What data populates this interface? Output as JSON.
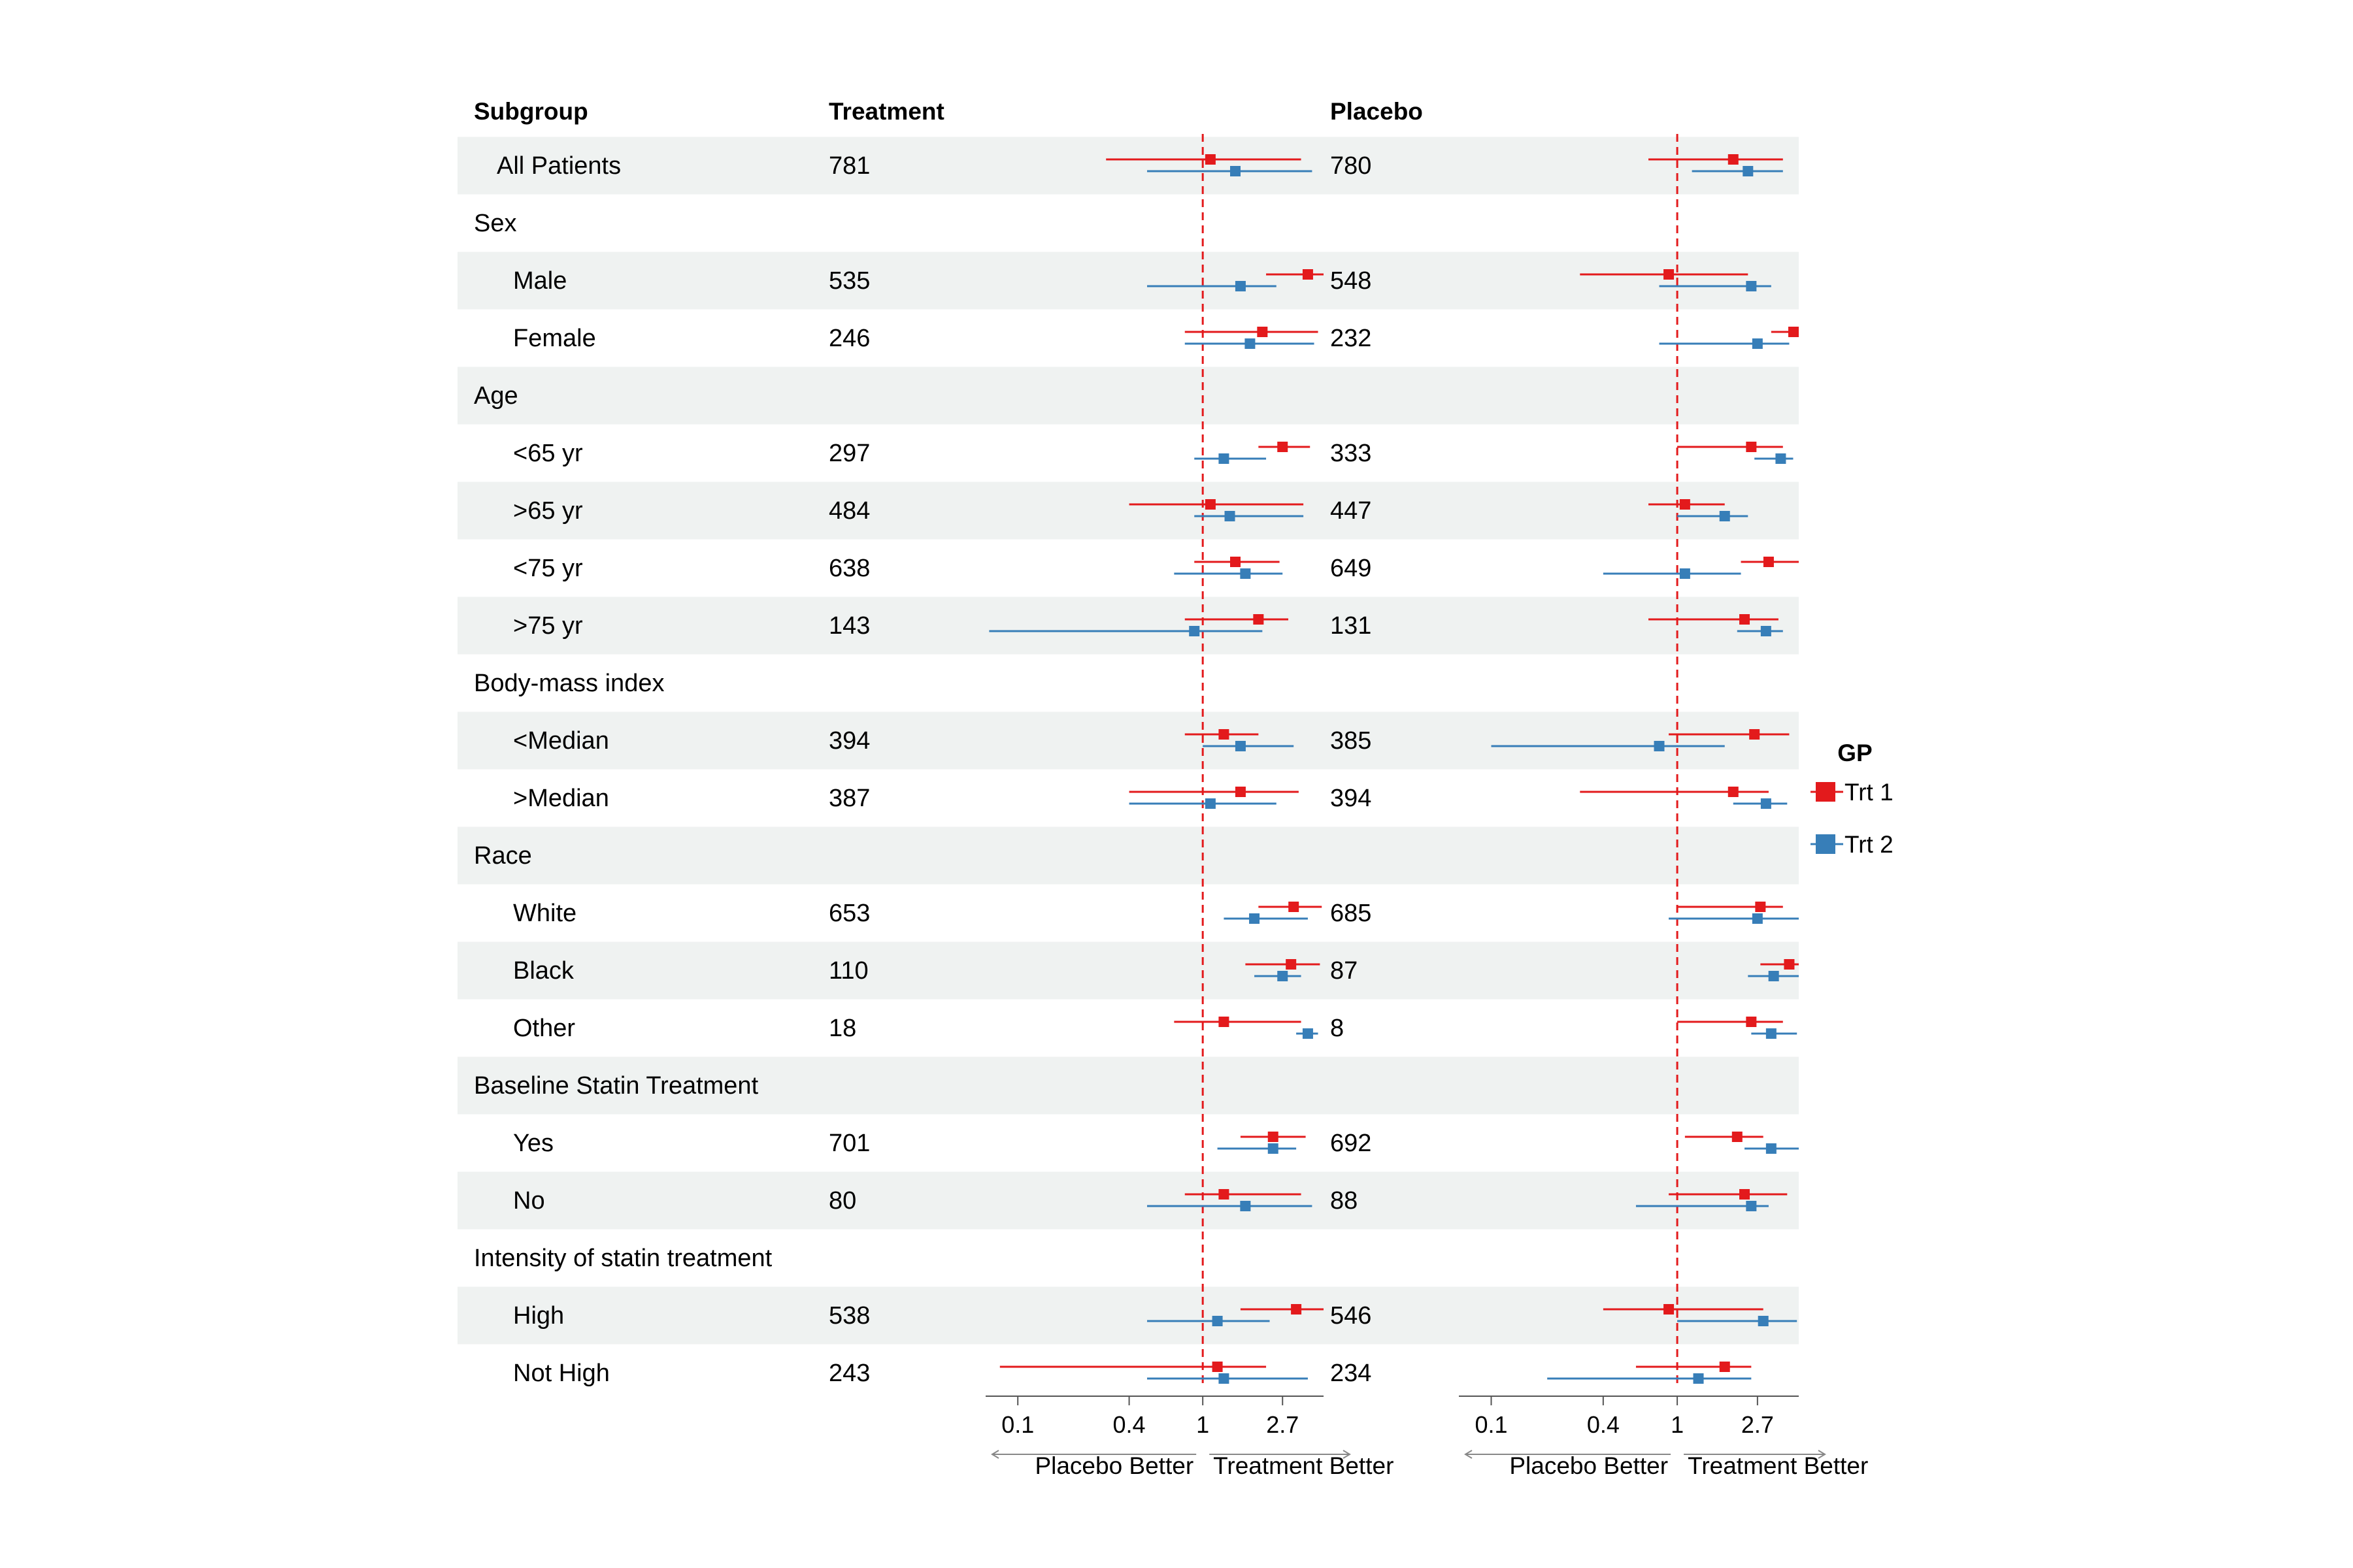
{
  "header": {
    "subgroup": "Subgroup",
    "treatment": "Treatment",
    "placebo": "Placebo"
  },
  "legend": {
    "title": "GP",
    "items": [
      {
        "label": "Trt 1",
        "color": "#e31a1c"
      },
      {
        "label": "Trt 2",
        "color": "#377eb8"
      }
    ]
  },
  "axis": {
    "scale": "log",
    "range": [
      0.067,
      4.5
    ],
    "ticks": [
      "0.1",
      "0.4",
      "1",
      "2.7"
    ],
    "tick_values": [
      0.1,
      0.4,
      1,
      2.7
    ],
    "reference": 1,
    "left_label": "Placebo Better",
    "right_label": "Treatment Better",
    "reference_color": "#e31a1c"
  },
  "chart_data": {
    "type": "forest",
    "x_scale": "log",
    "panels": [
      "Treatment",
      "Placebo"
    ],
    "series": [
      {
        "name": "Trt 1",
        "color": "#e31a1c"
      },
      {
        "name": "Trt 2",
        "color": "#377eb8"
      }
    ],
    "rows": [
      {
        "label": "All Patients",
        "level": "top",
        "shaded": true,
        "treatment_n": "781",
        "placebo_n": "780",
        "treatment": {
          "trt1": [
            1.1,
            0.3,
            3.4
          ],
          "trt2": [
            1.5,
            0.5,
            3.9
          ]
        },
        "placebo": {
          "trt1": [
            2.0,
            0.7,
            3.7
          ],
          "trt2": [
            2.4,
            1.2,
            3.7
          ]
        }
      },
      {
        "label": "Sex",
        "level": "group",
        "shaded": false
      },
      {
        "label": "Male",
        "level": "item",
        "shaded": true,
        "treatment_n": "535",
        "placebo_n": "548",
        "treatment": {
          "trt1": [
            3.7,
            2.2,
            4.5
          ],
          "trt2": [
            1.6,
            0.5,
            2.5
          ]
        },
        "placebo": {
          "trt1": [
            0.9,
            0.3,
            2.4
          ],
          "trt2": [
            2.5,
            0.8,
            3.2
          ]
        }
      },
      {
        "label": "Female",
        "level": "item",
        "shaded": false,
        "treatment_n": "246",
        "placebo_n": "232",
        "treatment": {
          "trt1": [
            2.1,
            0.8,
            4.2
          ],
          "trt2": [
            1.8,
            0.8,
            4.0
          ]
        },
        "placebo": {
          "trt1": [
            4.5,
            3.2,
            5.0
          ],
          "trt2": [
            2.7,
            0.8,
            4.0
          ]
        }
      },
      {
        "label": "Age",
        "level": "group",
        "shaded": true
      },
      {
        "label": "<65 yr",
        "level": "item",
        "shaded": false,
        "treatment_n": "297",
        "placebo_n": "333",
        "treatment": {
          "trt1": [
            2.7,
            2.0,
            3.8
          ],
          "trt2": [
            1.3,
            0.9,
            2.2
          ]
        },
        "placebo": {
          "trt1": [
            2.5,
            1.0,
            3.7
          ],
          "trt2": [
            3.6,
            2.6,
            4.2
          ]
        }
      },
      {
        "label": ">65 yr",
        "level": "item",
        "shaded": true,
        "treatment_n": "484",
        "placebo_n": "447",
        "treatment": {
          "trt1": [
            1.1,
            0.4,
            3.5
          ],
          "trt2": [
            1.4,
            0.9,
            3.5
          ]
        },
        "placebo": {
          "trt1": [
            1.1,
            0.7,
            1.8
          ],
          "trt2": [
            1.8,
            1.0,
            2.4
          ]
        }
      },
      {
        "label": "<75 yr",
        "level": "item",
        "shaded": false,
        "treatment_n": "638",
        "placebo_n": "649",
        "treatment": {
          "trt1": [
            1.5,
            0.9,
            2.6
          ],
          "trt2": [
            1.7,
            0.7,
            2.7
          ]
        },
        "placebo": {
          "trt1": [
            3.1,
            2.2,
            4.6
          ],
          "trt2": [
            1.1,
            0.4,
            2.2
          ]
        }
      },
      {
        "label": ">75 yr",
        "level": "item",
        "shaded": true,
        "treatment_n": "143",
        "placebo_n": "131",
        "treatment": {
          "trt1": [
            2.0,
            0.8,
            2.9
          ],
          "trt2": [
            0.9,
            0.07,
            2.1
          ]
        },
        "placebo": {
          "trt1": [
            2.3,
            0.7,
            3.5
          ],
          "trt2": [
            3.0,
            2.1,
            3.7
          ]
        }
      },
      {
        "label": "Body-mass index",
        "level": "group",
        "shaded": false
      },
      {
        "label": "<Median",
        "level": "item",
        "shaded": true,
        "treatment_n": "394",
        "placebo_n": "385",
        "treatment": {
          "trt1": [
            1.3,
            0.8,
            2.0
          ],
          "trt2": [
            1.6,
            1.0,
            3.1
          ]
        },
        "placebo": {
          "trt1": [
            2.6,
            0.9,
            4.0
          ],
          "trt2": [
            0.8,
            0.1,
            1.8
          ]
        }
      },
      {
        "label": ">Median",
        "level": "item",
        "shaded": false,
        "treatment_n": "387",
        "placebo_n": "394",
        "treatment": {
          "trt1": [
            1.6,
            0.4,
            3.3
          ],
          "trt2": [
            1.1,
            0.4,
            2.5
          ]
        },
        "placebo": {
          "trt1": [
            2.0,
            0.3,
            3.1
          ],
          "trt2": [
            3.0,
            2.0,
            3.9
          ]
        }
      },
      {
        "label": "Race",
        "level": "group",
        "shaded": true
      },
      {
        "label": "White",
        "level": "item",
        "shaded": false,
        "treatment_n": "653",
        "placebo_n": "685",
        "treatment": {
          "trt1": [
            3.1,
            2.0,
            4.4
          ],
          "trt2": [
            1.9,
            1.3,
            3.7
          ]
        },
        "placebo": {
          "trt1": [
            2.8,
            1.0,
            3.7
          ],
          "trt2": [
            2.7,
            0.9,
            4.5
          ]
        }
      },
      {
        "label": "Black",
        "level": "item",
        "shaded": true,
        "treatment_n": "110",
        "placebo_n": "87",
        "treatment": {
          "trt1": [
            3.0,
            1.7,
            4.3
          ],
          "trt2": [
            2.7,
            1.9,
            3.4
          ]
        },
        "placebo": {
          "trt1": [
            4.0,
            2.8,
            5.0
          ],
          "trt2": [
            3.3,
            2.4,
            4.6
          ]
        }
      },
      {
        "label": "Other",
        "level": "item",
        "shaded": false,
        "treatment_n": "18",
        "placebo_n": "8",
        "treatment": {
          "trt1": [
            1.3,
            0.7,
            3.4
          ],
          "trt2": [
            3.7,
            3.2,
            4.2
          ]
        },
        "placebo": {
          "trt1": [
            2.5,
            1.0,
            3.7
          ],
          "trt2": [
            3.2,
            2.5,
            4.4
          ]
        }
      },
      {
        "label": "Baseline Statin Treatment",
        "level": "group",
        "shaded": true
      },
      {
        "label": "Yes",
        "level": "item",
        "shaded": false,
        "treatment_n": "701",
        "placebo_n": "692",
        "treatment": {
          "trt1": [
            2.4,
            1.6,
            3.6
          ],
          "trt2": [
            2.4,
            1.2,
            3.2
          ]
        },
        "placebo": {
          "trt1": [
            2.1,
            1.1,
            2.9
          ],
          "trt2": [
            3.2,
            2.3,
            4.6
          ]
        }
      },
      {
        "label": "No",
        "level": "item",
        "shaded": true,
        "treatment_n": "80",
        "placebo_n": "88",
        "treatment": {
          "trt1": [
            1.3,
            0.8,
            3.4
          ],
          "trt2": [
            1.7,
            0.5,
            3.9
          ]
        },
        "placebo": {
          "trt1": [
            2.3,
            0.9,
            3.9
          ],
          "trt2": [
            2.5,
            0.6,
            3.1
          ]
        }
      },
      {
        "label": "Intensity of statin treatment",
        "level": "group",
        "shaded": false
      },
      {
        "label": "High",
        "level": "item",
        "shaded": true,
        "treatment_n": "538",
        "placebo_n": "546",
        "treatment": {
          "trt1": [
            3.2,
            1.6,
            4.5
          ],
          "trt2": [
            1.2,
            0.5,
            2.3
          ]
        },
        "placebo": {
          "trt1": [
            0.9,
            0.4,
            2.9
          ],
          "trt2": [
            2.9,
            1.0,
            4.4
          ]
        }
      },
      {
        "label": "Not High",
        "level": "item",
        "shaded": false,
        "treatment_n": "243",
        "placebo_n": "234",
        "treatment": {
          "trt1": [
            1.2,
            0.08,
            2.2
          ],
          "trt2": [
            1.3,
            0.5,
            3.7
          ]
        },
        "placebo": {
          "trt1": [
            1.8,
            0.6,
            2.5
          ],
          "trt2": [
            1.3,
            0.2,
            2.5
          ]
        }
      }
    ]
  }
}
